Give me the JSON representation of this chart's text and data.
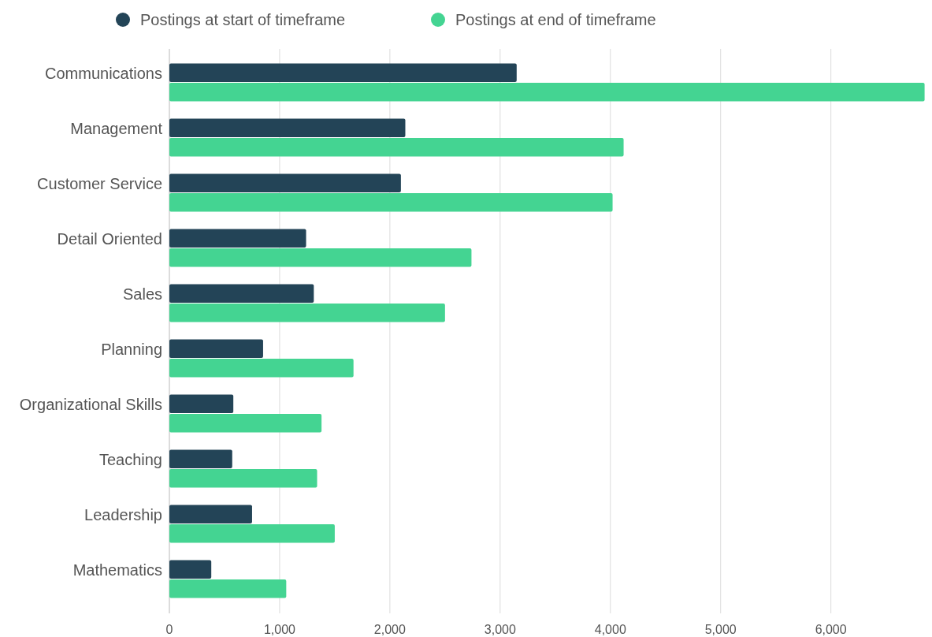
{
  "chart_data": {
    "type": "bar",
    "orientation": "horizontal",
    "categories": [
      "Communications",
      "Management",
      "Customer Service",
      "Detail Oriented",
      "Sales",
      "Planning",
      "Organizational Skills",
      "Teaching",
      "Leadership",
      "Mathematics"
    ],
    "series": [
      {
        "name": "Postings at start of timeframe",
        "color": "#234457",
        "values": [
          3150,
          2140,
          2100,
          1240,
          1310,
          850,
          580,
          570,
          750,
          380
        ]
      },
      {
        "name": "Postings at end of timeframe",
        "color": "#44d492",
        "values": [
          6850,
          4120,
          4020,
          2740,
          2500,
          1670,
          1380,
          1340,
          1500,
          1060
        ]
      }
    ],
    "xlim": [
      0,
      6860
    ],
    "xticks": [
      {
        "value": 0,
        "label": "0"
      },
      {
        "value": 1000,
        "label": "1,000"
      },
      {
        "value": 2000,
        "label": "2,000"
      },
      {
        "value": 3000,
        "label": "3,000"
      },
      {
        "value": 4000,
        "label": "4,000"
      },
      {
        "value": 5000,
        "label": "5,000"
      },
      {
        "value": 6000,
        "label": "6,000"
      }
    ],
    "grid": "x",
    "legend": "top"
  }
}
